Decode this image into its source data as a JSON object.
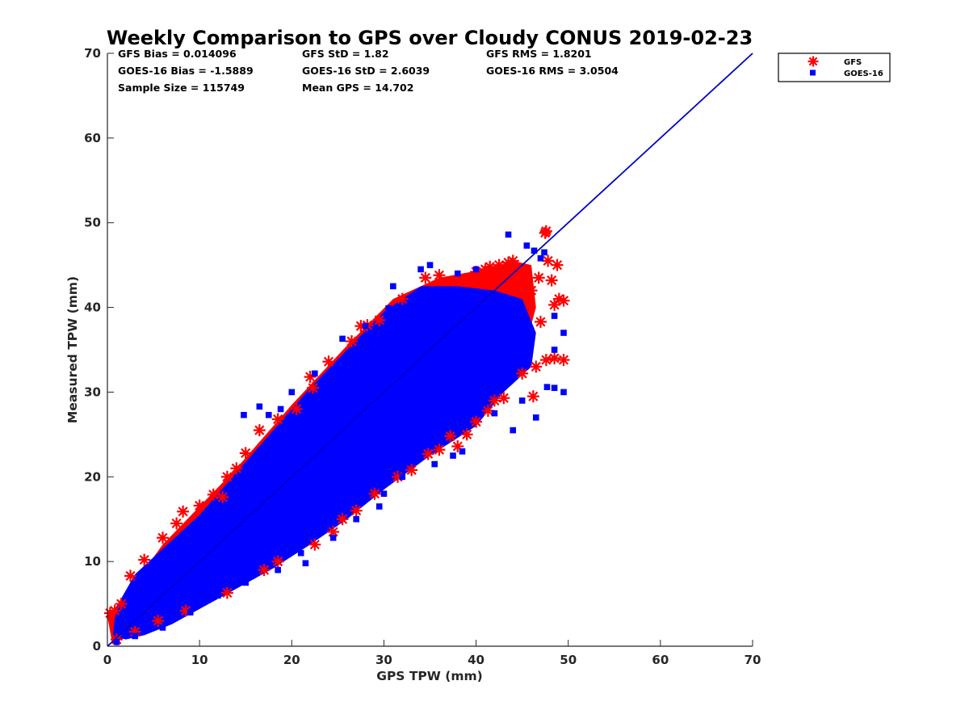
{
  "chart_data": {
    "type": "scatter",
    "title": "Weekly Comparison to GPS over Cloudy CONUS 2019-02-23",
    "xlabel": "GPS TPW (mm)",
    "ylabel": "Measured TPW (mm)",
    "xlim": [
      0,
      70
    ],
    "ylim": [
      0,
      70
    ],
    "xticks": [
      "0",
      "10",
      "20",
      "30",
      "40",
      "50",
      "60",
      "70"
    ],
    "yticks": [
      "0",
      "10",
      "20",
      "30",
      "40",
      "50",
      "60",
      "70"
    ],
    "grid": false,
    "legend_position": "outside-top-right",
    "stats": [
      [
        "GFS Bias = 0.014096",
        "GFS StD = 1.82",
        "GFS RMS = 1.8201"
      ],
      [
        "GOES-16 Bias = -1.5889",
        "GOES-16 StD = 2.6039",
        "GOES-16 RMS = 3.0504"
      ],
      [
        "Sample Size = 115749",
        "Mean GPS = 14.702",
        ""
      ]
    ],
    "reference_line": {
      "x": [
        0,
        70
      ],
      "y": [
        0,
        70
      ],
      "color": "#0000cc"
    },
    "series": [
      {
        "name": "GFS",
        "marker": "asterisk",
        "color": "#ff0000",
        "points": [
          [
            0.3,
            3.9
          ],
          [
            0.8,
            4.2
          ],
          [
            1.5,
            5.0
          ],
          [
            2.5,
            8.3
          ],
          [
            4,
            10.2
          ],
          [
            6,
            12.8
          ],
          [
            7.5,
            14.5
          ],
          [
            8.2,
            15.9
          ],
          [
            10,
            16.6
          ],
          [
            11.5,
            17.9
          ],
          [
            12.5,
            17.6
          ],
          [
            13,
            20.0
          ],
          [
            14,
            21.0
          ],
          [
            15,
            22.8
          ],
          [
            16.5,
            25.5
          ],
          [
            18.5,
            26.8
          ],
          [
            20.5,
            28.0
          ],
          [
            22,
            31.8
          ],
          [
            22.3,
            30.5
          ],
          [
            24,
            33.6
          ],
          [
            26.5,
            36.0
          ],
          [
            27.5,
            37.8
          ],
          [
            28.2,
            37.9
          ],
          [
            29.5,
            38.5
          ],
          [
            32,
            41.0
          ],
          [
            34.5,
            43.5
          ],
          [
            36,
            43.8
          ],
          [
            38,
            43.2
          ],
          [
            40,
            44.2
          ],
          [
            41,
            44.5
          ],
          [
            41.5,
            44.8
          ],
          [
            42.5,
            45.0
          ],
          [
            43.5,
            45.3
          ],
          [
            44,
            45.5
          ],
          [
            45,
            44.5
          ],
          [
            46,
            42.0
          ],
          [
            46.8,
            43.5
          ],
          [
            47.5,
            48.8
          ],
          [
            47.6,
            49.0
          ],
          [
            47.8,
            45.5
          ],
          [
            48.2,
            43.2
          ],
          [
            48.8,
            45.0
          ],
          [
            49,
            41.0
          ],
          [
            49.5,
            40.8
          ],
          [
            48.5,
            40.3
          ],
          [
            47,
            38.3
          ],
          [
            46.5,
            33.0
          ],
          [
            47.6,
            33.8
          ],
          [
            48.5,
            34.0
          ],
          [
            49.5,
            33.8
          ],
          [
            46.2,
            29.5
          ],
          [
            45.0,
            32.2
          ],
          [
            43,
            29.3
          ],
          [
            42,
            29.0
          ],
          [
            41.3,
            27.8
          ],
          [
            40,
            26.5
          ],
          [
            39,
            25.0
          ],
          [
            38,
            23.6
          ],
          [
            37.2,
            24.8
          ],
          [
            36.0,
            23.2
          ],
          [
            34.8,
            22.7
          ],
          [
            33.0,
            20.8
          ],
          [
            31.5,
            20.0
          ],
          [
            29.0,
            18.0
          ],
          [
            27.0,
            16.0
          ],
          [
            25.5,
            15.0
          ],
          [
            24.5,
            13.5
          ],
          [
            22.5,
            12.0
          ],
          [
            18.5,
            10.0
          ],
          [
            17.0,
            9.0
          ],
          [
            13.0,
            6.3
          ],
          [
            8.5,
            4.2
          ],
          [
            5.5,
            3.0
          ],
          [
            3.0,
            1.7
          ],
          [
            1.0,
            0.8
          ]
        ]
      },
      {
        "name": "GOES-16",
        "marker": "square",
        "color": "#0000ff",
        "points": [
          [
            14.8,
            27.3
          ],
          [
            16.5,
            28.3
          ],
          [
            17.5,
            27.3
          ],
          [
            18.8,
            28.0
          ],
          [
            20.0,
            30.0
          ],
          [
            22.5,
            32.2
          ],
          [
            25.5,
            36.3
          ],
          [
            28.0,
            37.8
          ],
          [
            30.5,
            39.9
          ],
          [
            31.0,
            42.5
          ],
          [
            34.0,
            44.5
          ],
          [
            35.0,
            45.0
          ],
          [
            38.0,
            44.0
          ],
          [
            40.0,
            44.5
          ],
          [
            43.5,
            48.6
          ],
          [
            45.5,
            47.3
          ],
          [
            46.3,
            46.7
          ],
          [
            47.0,
            45.8
          ],
          [
            47.4,
            46.5
          ],
          [
            48.5,
            39.0
          ],
          [
            49.5,
            37.0
          ],
          [
            48.5,
            35.0
          ],
          [
            49.5,
            30.0
          ],
          [
            48.5,
            30.5
          ],
          [
            47.7,
            30.6
          ],
          [
            46.5,
            27.0
          ],
          [
            45.0,
            29.0
          ],
          [
            44.0,
            25.5
          ],
          [
            42.0,
            27.5
          ],
          [
            38.5,
            23.0
          ],
          [
            37.5,
            22.5
          ],
          [
            35.5,
            21.5
          ],
          [
            32.0,
            20.0
          ],
          [
            30.0,
            18.0
          ],
          [
            29.5,
            16.5
          ],
          [
            27.0,
            15.0
          ],
          [
            24.0,
            14.8
          ],
          [
            24.5,
            12.8
          ],
          [
            21.0,
            11.0
          ],
          [
            18.5,
            9.0
          ],
          [
            21.5,
            9.8
          ],
          [
            15.0,
            7.5
          ],
          [
            12.0,
            6.0
          ],
          [
            9.0,
            4.0
          ],
          [
            6.0,
            2.2
          ],
          [
            3.0,
            1.2
          ],
          [
            1.0,
            0.5
          ]
        ]
      }
    ]
  }
}
